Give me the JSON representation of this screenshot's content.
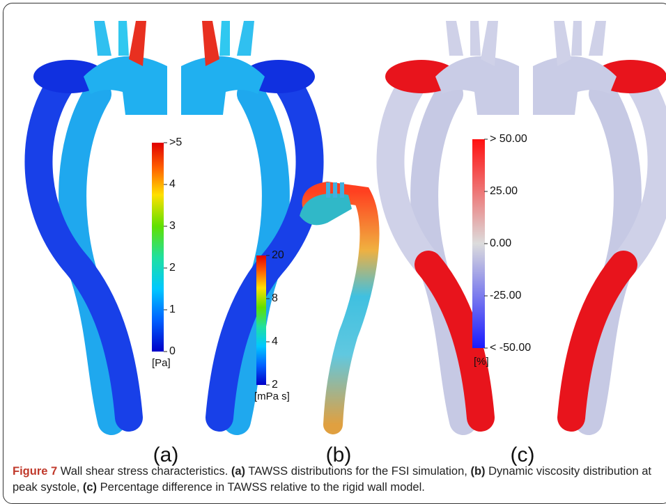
{
  "panels": [
    {
      "label": "(a)",
      "unit": "[Pa]",
      "ticks": [
        ">5",
        "4",
        "3",
        "2",
        "1",
        "0"
      ]
    },
    {
      "label": "(b)",
      "unit": "[mPa s]",
      "ticks": [
        "20",
        "8",
        "4",
        "2"
      ]
    },
    {
      "label": "(c)",
      "unit": "[%]",
      "ticks": [
        "> 50.00",
        "25.00",
        "0.00",
        "-25.00",
        "< -50.00"
      ]
    }
  ],
  "caption": {
    "parts": [
      {
        "text": "Figure 7",
        "style": "fig"
      },
      {
        "text": " Wall shear stress characteristics. ",
        "style": "plain"
      },
      {
        "text": "(a)",
        "style": "bold"
      },
      {
        "text": " TAWSS distributions for the FSI simulation, ",
        "style": "plain"
      },
      {
        "text": "(b)",
        "style": "bold"
      },
      {
        "text": " Dynamic viscosity distribution at peak systole, ",
        "style": "plain"
      },
      {
        "text": "(c)",
        "style": "bold"
      },
      {
        "text": " Percentage difference in TAWSS relative to the rigid wall model.",
        "style": "plain"
      }
    ]
  }
}
